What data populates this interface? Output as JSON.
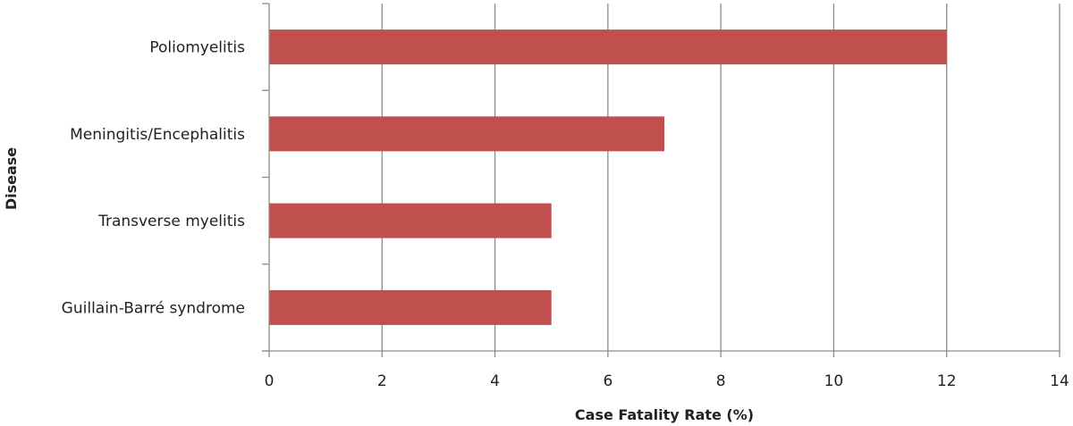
{
  "chart_data": {
    "type": "bar",
    "orientation": "horizontal",
    "categories": [
      "Poliomyelitis",
      "Meningitis/Encephalitis",
      "Transverse myelitis",
      "Guillain-Barré syndrome"
    ],
    "values": [
      12,
      7,
      5,
      5
    ],
    "xlabel": "Case Fatality Rate (%)",
    "ylabel": "Disease",
    "xlim": [
      0,
      14
    ],
    "xticks": [
      "0",
      "2",
      "4",
      "6",
      "8",
      "10",
      "12",
      "14"
    ],
    "grid": "vertical",
    "legend": "none",
    "bar_color": "#C0504D"
  }
}
